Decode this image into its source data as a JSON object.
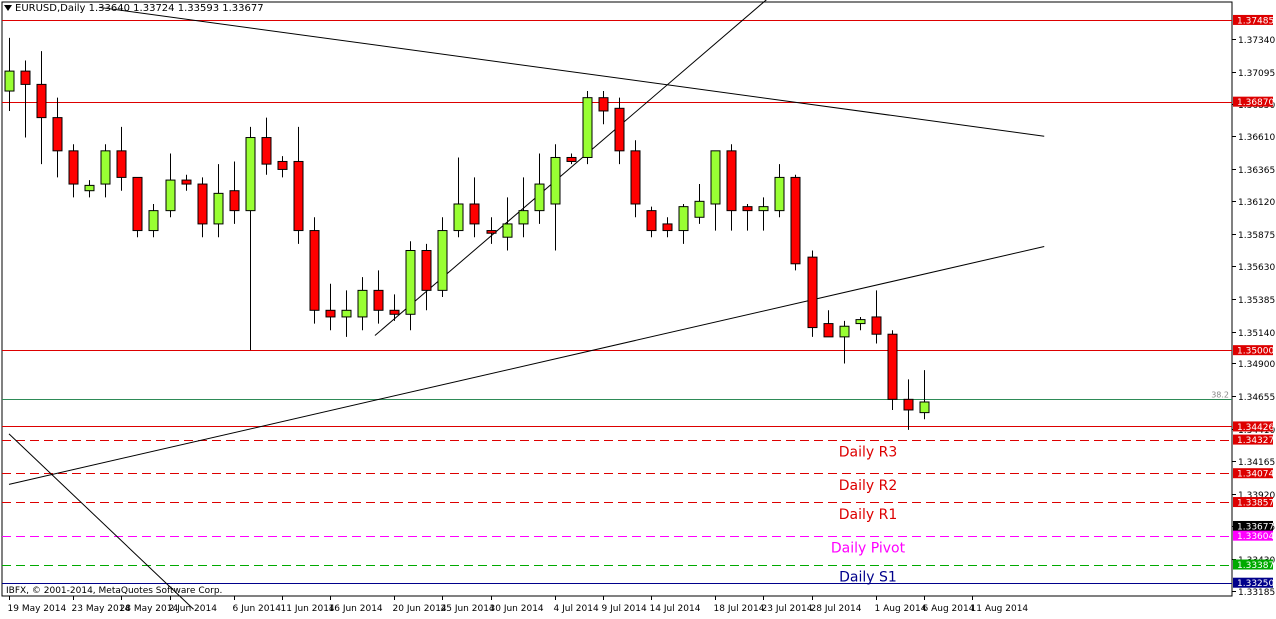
{
  "chart_data": {
    "type": "candlestick",
    "title": "EURUSD,Daily",
    "ohlc_readout": [
      "1.33640",
      "1.33724",
      "1.33593",
      "1.33677"
    ],
    "copyright": "IBFX, © 2001-2014, MetaQuotes Software Corp.",
    "ylim": [
      1.3315,
      1.3762
    ],
    "y_ticks": [
      1.3734,
      1.37095,
      1.3685,
      1.3661,
      1.36365,
      1.3612,
      1.35875,
      1.3563,
      1.35385,
      1.3514,
      1.349,
      1.34655,
      1.3441,
      1.34165,
      1.3392,
      1.33675,
      1.3343,
      1.33185
    ],
    "y_tick_labels": [
      "1.37340",
      "1.37095",
      "1.36850",
      "1.36610",
      "1.36365",
      "1.36120",
      "1.35875",
      "1.35630",
      "1.35385",
      "1.35140",
      "1.34900",
      "1.34655",
      "1.34410",
      "1.34165",
      "1.33920",
      "1.33675",
      "1.33430",
      "1.33185"
    ],
    "x_ticks": [
      {
        "label": "19 May 2014",
        "i": 0
      },
      {
        "label": "23 May 2014",
        "i": 4
      },
      {
        "label": "28 May 2014",
        "i": 7
      },
      {
        "label": "2 Jun 2014",
        "i": 10
      },
      {
        "label": "6 Jun 2014",
        "i": 14
      },
      {
        "label": "11 Jun 2014",
        "i": 17
      },
      {
        "label": "16 Jun 2014",
        "i": 20
      },
      {
        "label": "20 Jun 2014",
        "i": 24
      },
      {
        "label": "25 Jun 2014",
        "i": 27
      },
      {
        "label": "30 Jun 2014",
        "i": 30
      },
      {
        "label": "4 Jul 2014",
        "i": 34
      },
      {
        "label": "9 Jul 2014",
        "i": 37
      },
      {
        "label": "14 Jul 2014",
        "i": 40
      },
      {
        "label": "18 Jul 2014",
        "i": 44
      },
      {
        "label": "23 Jul 2014",
        "i": 47
      },
      {
        "label": "28 Jul 2014",
        "i": 50
      },
      {
        "label": "1 Aug 2014",
        "i": 54
      },
      {
        "label": "6 Aug 2014",
        "i": 57
      },
      {
        "label": "11 Aug 2014",
        "i": 60
      }
    ],
    "candles": [
      {
        "o": 1.3695,
        "h": 1.3735,
        "l": 1.368,
        "c": 1.371
      },
      {
        "o": 1.371,
        "h": 1.3718,
        "l": 1.366,
        "c": 1.37
      },
      {
        "o": 1.37,
        "h": 1.3725,
        "l": 1.364,
        "c": 1.3675
      },
      {
        "o": 1.3675,
        "h": 1.369,
        "l": 1.363,
        "c": 1.365
      },
      {
        "o": 1.365,
        "h": 1.3655,
        "l": 1.3615,
        "c": 1.3625
      },
      {
        "o": 1.362,
        "h": 1.3628,
        "l": 1.3615,
        "c": 1.3624
      },
      {
        "o": 1.3625,
        "h": 1.3655,
        "l": 1.3615,
        "c": 1.365
      },
      {
        "o": 1.365,
        "h": 1.3668,
        "l": 1.362,
        "c": 1.363
      },
      {
        "o": 1.363,
        "h": 1.363,
        "l": 1.3585,
        "c": 1.359
      },
      {
        "o": 1.359,
        "h": 1.361,
        "l": 1.3585,
        "c": 1.3605
      },
      {
        "o": 1.3605,
        "h": 1.3648,
        "l": 1.36,
        "c": 1.3628
      },
      {
        "o": 1.3628,
        "h": 1.3632,
        "l": 1.362,
        "c": 1.3625
      },
      {
        "o": 1.3625,
        "h": 1.363,
        "l": 1.3585,
        "c": 1.3595
      },
      {
        "o": 1.3595,
        "h": 1.364,
        "l": 1.3585,
        "c": 1.3618
      },
      {
        "o": 1.362,
        "h": 1.3642,
        "l": 1.3595,
        "c": 1.3605
      },
      {
        "o": 1.3605,
        "h": 1.3668,
        "l": 1.35,
        "c": 1.366
      },
      {
        "o": 1.366,
        "h": 1.3675,
        "l": 1.3632,
        "c": 1.364
      },
      {
        "o": 1.3642,
        "h": 1.3646,
        "l": 1.363,
        "c": 1.3636
      },
      {
        "o": 1.3642,
        "h": 1.3668,
        "l": 1.358,
        "c": 1.359
      },
      {
        "o": 1.359,
        "h": 1.36,
        "l": 1.352,
        "c": 1.353
      },
      {
        "o": 1.353,
        "h": 1.355,
        "l": 1.3515,
        "c": 1.3525
      },
      {
        "o": 1.3525,
        "h": 1.3545,
        "l": 1.351,
        "c": 1.353
      },
      {
        "o": 1.3525,
        "h": 1.3555,
        "l": 1.3515,
        "c": 1.3545
      },
      {
        "o": 1.3545,
        "h": 1.356,
        "l": 1.352,
        "c": 1.353
      },
      {
        "o": 1.353,
        "h": 1.3542,
        "l": 1.3522,
        "c": 1.3527
      },
      {
        "o": 1.3527,
        "h": 1.3582,
        "l": 1.3515,
        "c": 1.3575
      },
      {
        "o": 1.3575,
        "h": 1.358,
        "l": 1.353,
        "c": 1.3545
      },
      {
        "o": 1.3545,
        "h": 1.36,
        "l": 1.354,
        "c": 1.359
      },
      {
        "o": 1.359,
        "h": 1.3645,
        "l": 1.3585,
        "c": 1.361
      },
      {
        "o": 1.361,
        "h": 1.363,
        "l": 1.3585,
        "c": 1.3595
      },
      {
        "o": 1.359,
        "h": 1.36,
        "l": 1.358,
        "c": 1.3588
      },
      {
        "o": 1.3585,
        "h": 1.3615,
        "l": 1.3575,
        "c": 1.3595
      },
      {
        "o": 1.3595,
        "h": 1.363,
        "l": 1.3585,
        "c": 1.3605
      },
      {
        "o": 1.3605,
        "h": 1.3648,
        "l": 1.3595,
        "c": 1.3625
      },
      {
        "o": 1.361,
        "h": 1.3655,
        "l": 1.3575,
        "c": 1.3645
      },
      {
        "o": 1.3645,
        "h": 1.3648,
        "l": 1.364,
        "c": 1.3642
      },
      {
        "o": 1.3645,
        "h": 1.3695,
        "l": 1.364,
        "c": 1.369
      },
      {
        "o": 1.369,
        "h": 1.3695,
        "l": 1.367,
        "c": 1.368
      },
      {
        "o": 1.3682,
        "h": 1.369,
        "l": 1.364,
        "c": 1.365
      },
      {
        "o": 1.365,
        "h": 1.3658,
        "l": 1.36,
        "c": 1.361
      },
      {
        "o": 1.3605,
        "h": 1.3608,
        "l": 1.3585,
        "c": 1.359
      },
      {
        "o": 1.3595,
        "h": 1.36,
        "l": 1.3585,
        "c": 1.359
      },
      {
        "o": 1.359,
        "h": 1.361,
        "l": 1.358,
        "c": 1.3608
      },
      {
        "o": 1.36,
        "h": 1.3625,
        "l": 1.3595,
        "c": 1.3612
      },
      {
        "o": 1.361,
        "h": 1.365,
        "l": 1.359,
        "c": 1.365
      },
      {
        "o": 1.365,
        "h": 1.3655,
        "l": 1.359,
        "c": 1.3605
      },
      {
        "o": 1.3608,
        "h": 1.361,
        "l": 1.359,
        "c": 1.3605
      },
      {
        "o": 1.3605,
        "h": 1.3615,
        "l": 1.359,
        "c": 1.3608
      },
      {
        "o": 1.3605,
        "h": 1.364,
        "l": 1.36,
        "c": 1.363
      },
      {
        "o": 1.363,
        "h": 1.3632,
        "l": 1.356,
        "c": 1.3565
      },
      {
        "o": 1.357,
        "h": 1.3575,
        "l": 1.351,
        "c": 1.3517
      },
      {
        "o": 1.352,
        "h": 1.353,
        "l": 1.351,
        "c": 1.351
      },
      {
        "o": 1.351,
        "h": 1.3522,
        "l": 1.349,
        "c": 1.3518
      },
      {
        "o": 1.352,
        "h": 1.3525,
        "l": 1.3515,
        "c": 1.3523
      },
      {
        "o": 1.3525,
        "h": 1.3545,
        "l": 1.3505,
        "c": 1.3512
      },
      {
        "o": 1.3512,
        "h": 1.3515,
        "l": 1.3455,
        "c": 1.3463
      },
      {
        "o": 1.3463,
        "h": 1.3478,
        "l": 1.344,
        "c": 1.3455
      },
      {
        "o": 1.3453,
        "h": 1.3485,
        "l": 1.3448,
        "c": 1.3461
      }
    ],
    "horizontal_levels": [
      {
        "label": "1.37485",
        "value": 1.37485,
        "color": "#dd0000",
        "style": "solid"
      },
      {
        "label": "1.36870",
        "value": 1.3687,
        "color": "#dd0000",
        "style": "solid"
      },
      {
        "label": "1.35000",
        "value": 1.35,
        "color": "#dd0000",
        "style": "solid"
      },
      {
        "label": "1.34426",
        "value": 1.34426,
        "color": "#dd0000",
        "style": "solid"
      },
      {
        "label": "1.34327",
        "value": 1.34327,
        "color": "#dd0000",
        "style": "dash"
      },
      {
        "label": "1.34074",
        "value": 1.34074,
        "color": "#dd0000",
        "style": "dash"
      },
      {
        "label": "1.33857",
        "value": 1.33857,
        "color": "#dd0000",
        "style": "dash"
      },
      {
        "label": "1.33677",
        "value": 1.33677,
        "color": "#000000",
        "style": "none"
      },
      {
        "label": "1.33604",
        "value": 1.33604,
        "color": "#ff00ff",
        "style": "dash"
      },
      {
        "label": "1.33387",
        "value": 1.33387,
        "color": "#00aa00",
        "style": "dash"
      },
      {
        "label": "1.33250",
        "value": 1.3325,
        "color": "#00008b",
        "style": "solid"
      }
    ],
    "fib_level": {
      "label": "38.2",
      "value": 1.3463,
      "color": "#2e8b57"
    },
    "annotations": [
      {
        "text": "Daily R3",
        "y": 1.34327,
        "color": "#dd0000"
      },
      {
        "text": "Daily R2",
        "y": 1.34074,
        "color": "#dd0000"
      },
      {
        "text": "Daily R1",
        "y": 1.33857,
        "color": "#dd0000"
      },
      {
        "text": "Daily Pivot",
        "y": 1.33604,
        "color": "#ff00ff"
      },
      {
        "text": "Daily S1",
        "y": 1.33387,
        "color": "#00008b"
      }
    ],
    "trendlines": [
      {
        "from": {
          "i": 5.6,
          "y": 1.3758
        },
        "to": {
          "i": 64.5,
          "y": 1.3661
        }
      },
      {
        "from": {
          "i": 0,
          "y": 1.3399
        },
        "to": {
          "i": 64.5,
          "y": 1.3578
        }
      },
      {
        "from": {
          "i": 22.8,
          "y": 1.3511
        },
        "to": {
          "i": 47.8,
          "y": 1.377
        }
      },
      {
        "from": {
          "i": 0,
          "y": 1.3437
        },
        "to": {
          "i": 11.5,
          "y": 1.3305
        }
      }
    ],
    "colors": {
      "bull": "#99ff33",
      "bear": "#ff0000",
      "outline": "#000000"
    }
  }
}
